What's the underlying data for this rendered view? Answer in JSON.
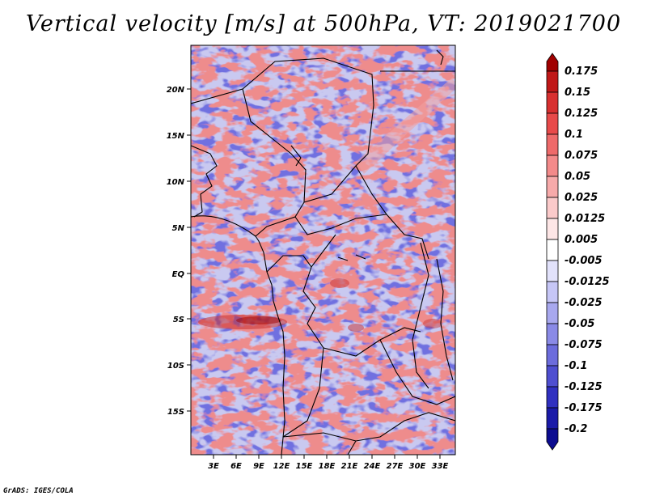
{
  "title": "Vertical velocity [m/s] at 500hPa, VT: 2019021700",
  "footer": "GrADS: IGES/COLA",
  "map": {
    "lon_range": [
      0,
      35
    ],
    "lat_range": [
      -20,
      25
    ],
    "lon_ticks": [
      "3E",
      "6E",
      "9E",
      "12E",
      "15E",
      "18E",
      "21E",
      "24E",
      "27E",
      "30E",
      "33E"
    ],
    "lat_ticks": [
      "20N",
      "15N",
      "10N",
      "5N",
      "EQ",
      "5S",
      "10S",
      "15S"
    ]
  },
  "colorbar": {
    "levels": [
      "0.175",
      "0.15",
      "0.125",
      "0.1",
      "0.075",
      "0.05",
      "0.025",
      "0.0125",
      "0.005",
      "-0.005",
      "-0.0125",
      "-0.025",
      "-0.05",
      "-0.075",
      "-0.1",
      "-0.125",
      "-0.175",
      "-0.2"
    ],
    "colors": [
      "#a00000",
      "#c01818",
      "#d83030",
      "#e84a4a",
      "#ee6a6a",
      "#f38a8a",
      "#f7aaaa",
      "#fbcaca",
      "#fde6e6",
      "#ffffff",
      "#e2e2fb",
      "#c6c6f6",
      "#a8a8ee",
      "#8a8ae6",
      "#6c6cdc",
      "#4e4ed0",
      "#3030c0",
      "#1a1aa8",
      "#0c0c90"
    ]
  },
  "colors": {
    "base_field": "#c9c9f0",
    "positive": "#f2a0a0",
    "negative": "#7070e0"
  }
}
